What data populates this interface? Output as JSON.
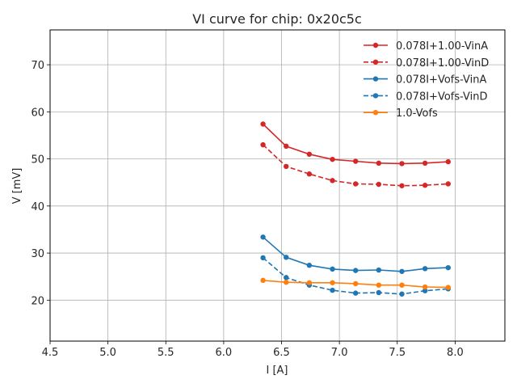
{
  "chart_data": {
    "type": "line",
    "title": "VI curve for chip: 0x20c5c",
    "xlabel": "I [A]",
    "ylabel": "V [mV]",
    "xlim": [
      4.5,
      8.43
    ],
    "ylim": [
      11.3,
      77.4
    ],
    "xticks": [
      4.5,
      5.0,
      5.5,
      6.0,
      6.5,
      7.0,
      7.5,
      8.0
    ],
    "xtick_labels": [
      "4.5",
      "5.0",
      "5.5",
      "6.0",
      "6.5",
      "7.0",
      "7.5",
      "8.0"
    ],
    "yticks": [
      20,
      30,
      40,
      50,
      60,
      70
    ],
    "ytick_labels": [
      "20",
      "30",
      "40",
      "50",
      "60",
      "70"
    ],
    "grid": true,
    "legend_position": "top-right",
    "x": [
      6.34,
      6.54,
      6.74,
      6.94,
      7.14,
      7.34,
      7.54,
      7.74,
      7.94
    ],
    "series": [
      {
        "name": "0.078I+1.00-VinA",
        "color": "#d62728",
        "style": "solid",
        "values": [
          57.4,
          52.7,
          51.0,
          49.9,
          49.5,
          49.1,
          49.0,
          49.1,
          49.4
        ]
      },
      {
        "name": "0.078I+1.00-VinD",
        "color": "#d62728",
        "style": "dashed",
        "values": [
          53.0,
          48.4,
          46.8,
          45.4,
          44.7,
          44.6,
          44.3,
          44.4,
          44.7
        ]
      },
      {
        "name": "0.078I+Vofs-VinA",
        "color": "#1f77b4",
        "style": "solid",
        "values": [
          33.4,
          29.1,
          27.4,
          26.6,
          26.3,
          26.4,
          26.1,
          26.7,
          26.9
        ]
      },
      {
        "name": "0.078I+Vofs-VinD",
        "color": "#1f77b4",
        "style": "dashed",
        "values": [
          29.0,
          24.8,
          23.2,
          22.1,
          21.5,
          21.6,
          21.3,
          22.0,
          22.4
        ]
      },
      {
        "name": "1.0-Vofs",
        "color": "#ff7f0e",
        "style": "solid",
        "values": [
          24.2,
          23.8,
          23.7,
          23.7,
          23.5,
          23.2,
          23.2,
          22.8,
          22.7
        ]
      }
    ]
  }
}
